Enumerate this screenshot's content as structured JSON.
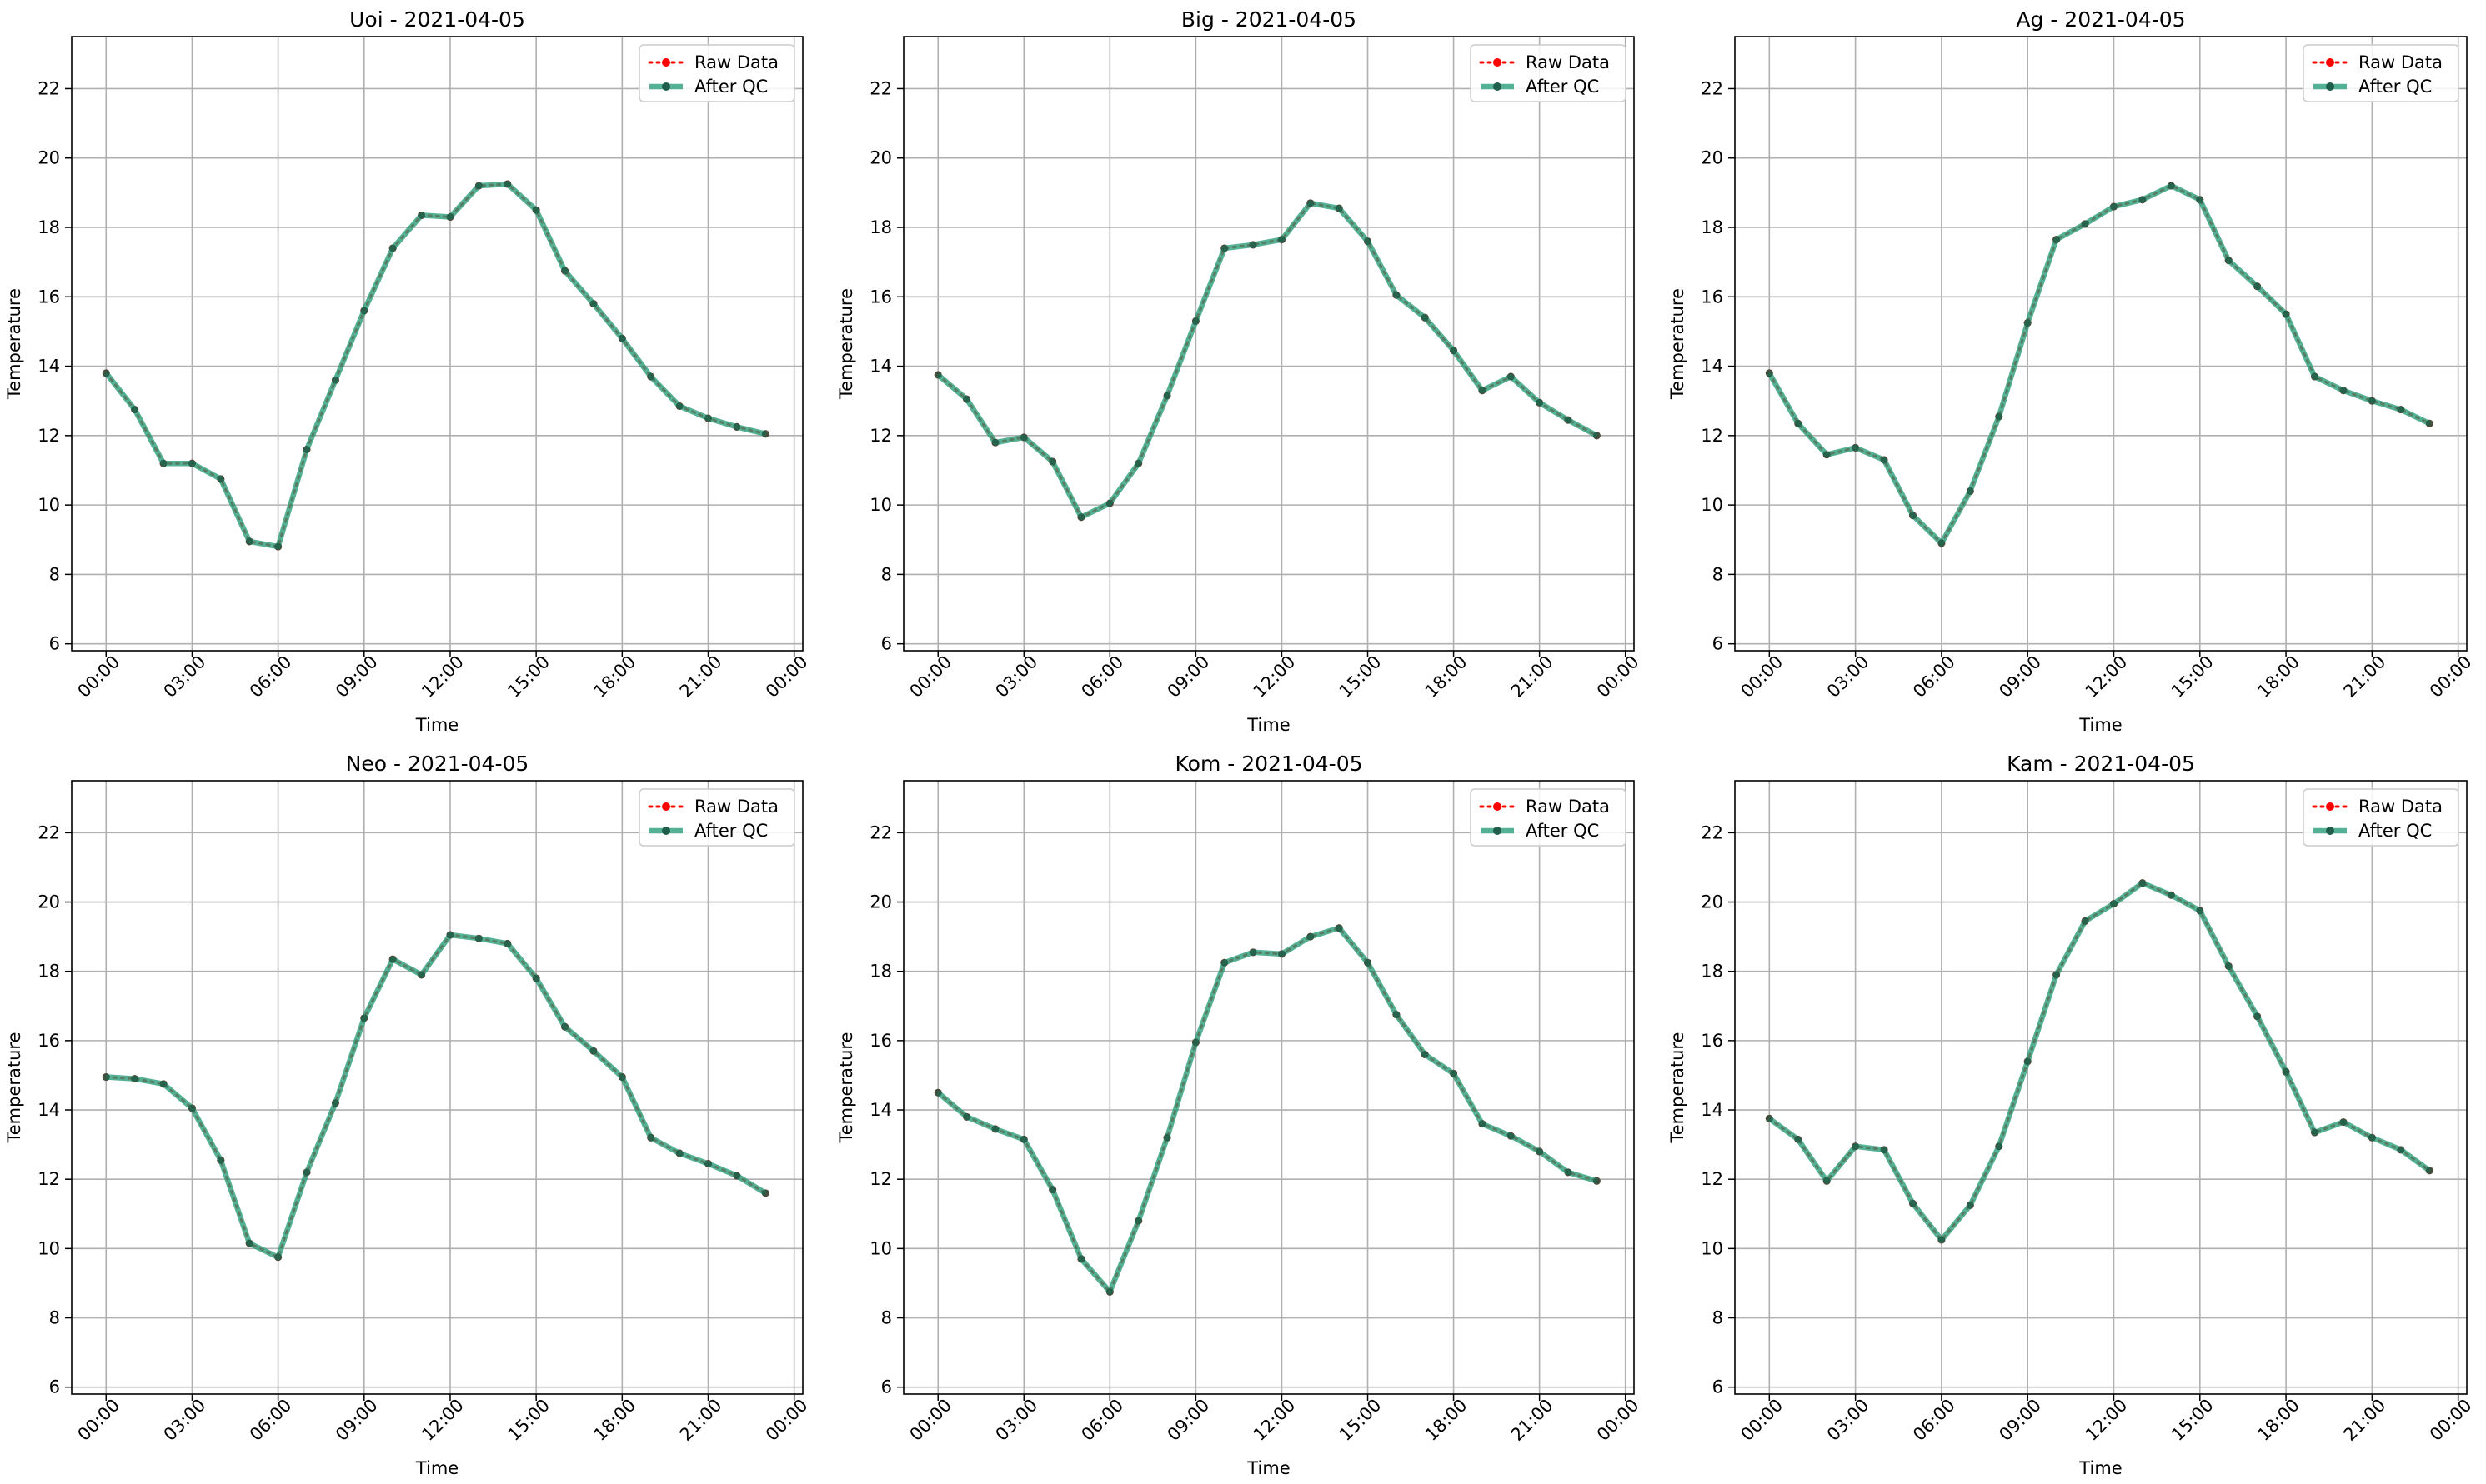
{
  "figure": {
    "colors": {
      "raw": "#ff0000",
      "qc": "#2a9d7a",
      "grid": "#b0b0b0",
      "frame": "#000000"
    },
    "legend_position": "upper right",
    "grid": true
  },
  "chart_data": [
    {
      "type": "line",
      "title": "Uoi - 2021-04-05",
      "xlabel": "Time",
      "ylabel": "Temperature",
      "x_hours": [
        0,
        1,
        2,
        3,
        4,
        5,
        6,
        7,
        8,
        9,
        10,
        11,
        12,
        13,
        14,
        15,
        16,
        17,
        18,
        19,
        20,
        21,
        22,
        23
      ],
      "xticks": [
        "00:00",
        "03:00",
        "06:00",
        "09:00",
        "12:00",
        "15:00",
        "18:00",
        "21:00",
        "00:00"
      ],
      "yticks": [
        "6",
        "8",
        "10",
        "12",
        "14",
        "16",
        "18",
        "20",
        "22"
      ],
      "ylim": [
        5.8,
        23.5
      ],
      "xlim_hours": [
        -1.2,
        24.3
      ],
      "series": [
        {
          "name": "Raw Data",
          "values": [
            13.8,
            12.75,
            11.2,
            11.2,
            10.75,
            8.95,
            8.8,
            11.6,
            13.6,
            15.6,
            17.4,
            18.35,
            18.3,
            19.2,
            19.25,
            18.5,
            16.75,
            15.8,
            14.8,
            13.7,
            12.85,
            12.5,
            12.25,
            12.05
          ]
        },
        {
          "name": "After QC",
          "values": [
            13.8,
            12.75,
            11.2,
            11.2,
            10.75,
            8.95,
            8.8,
            11.6,
            13.6,
            15.6,
            17.4,
            18.35,
            18.3,
            19.2,
            19.25,
            18.5,
            16.75,
            15.8,
            14.8,
            13.7,
            12.85,
            12.5,
            12.25,
            12.05
          ]
        }
      ]
    },
    {
      "type": "line",
      "title": "Big - 2021-04-05",
      "xlabel": "Time",
      "ylabel": "Temperature",
      "x_hours": [
        0,
        1,
        2,
        3,
        4,
        5,
        6,
        7,
        8,
        9,
        10,
        11,
        12,
        13,
        14,
        15,
        16,
        17,
        18,
        19,
        20,
        21,
        22,
        23
      ],
      "xticks": [
        "00:00",
        "03:00",
        "06:00",
        "09:00",
        "12:00",
        "15:00",
        "18:00",
        "21:00",
        "00:00"
      ],
      "yticks": [
        "6",
        "8",
        "10",
        "12",
        "14",
        "16",
        "18",
        "20",
        "22"
      ],
      "ylim": [
        5.8,
        23.5
      ],
      "xlim_hours": [
        -1.2,
        24.3
      ],
      "series": [
        {
          "name": "Raw Data",
          "values": [
            13.75,
            13.05,
            11.8,
            11.95,
            11.25,
            9.65,
            10.05,
            11.2,
            13.15,
            15.3,
            17.4,
            17.5,
            17.65,
            18.7,
            18.55,
            17.6,
            16.05,
            15.4,
            14.45,
            13.3,
            13.7,
            12.95,
            12.45,
            12.0
          ]
        },
        {
          "name": "After QC",
          "values": [
            13.75,
            13.05,
            11.8,
            11.95,
            11.25,
            9.65,
            10.05,
            11.2,
            13.15,
            15.3,
            17.4,
            17.5,
            17.65,
            18.7,
            18.55,
            17.6,
            16.05,
            15.4,
            14.45,
            13.3,
            13.7,
            12.95,
            12.45,
            12.0
          ]
        }
      ]
    },
    {
      "type": "line",
      "title": "Ag - 2021-04-05",
      "xlabel": "Time",
      "ylabel": "Temperature",
      "x_hours": [
        0,
        1,
        2,
        3,
        4,
        5,
        6,
        7,
        8,
        9,
        10,
        11,
        12,
        13,
        14,
        15,
        16,
        17,
        18,
        19,
        20,
        21,
        22,
        23
      ],
      "xticks": [
        "00:00",
        "03:00",
        "06:00",
        "09:00",
        "12:00",
        "15:00",
        "18:00",
        "21:00",
        "00:00"
      ],
      "yticks": [
        "6",
        "8",
        "10",
        "12",
        "14",
        "16",
        "18",
        "20",
        "22"
      ],
      "ylim": [
        5.8,
        23.5
      ],
      "xlim_hours": [
        -1.2,
        24.3
      ],
      "series": [
        {
          "name": "Raw Data",
          "values": [
            13.8,
            12.35,
            11.45,
            11.65,
            11.3,
            9.7,
            8.9,
            10.4,
            12.55,
            15.25,
            17.65,
            18.1,
            18.6,
            18.8,
            19.2,
            18.8,
            17.05,
            16.3,
            15.5,
            13.7,
            13.3,
            13.0,
            12.75,
            12.35
          ]
        },
        {
          "name": "After QC",
          "values": [
            13.8,
            12.35,
            11.45,
            11.65,
            11.3,
            9.7,
            8.9,
            10.4,
            12.55,
            15.25,
            17.65,
            18.1,
            18.6,
            18.8,
            19.2,
            18.8,
            17.05,
            16.3,
            15.5,
            13.7,
            13.3,
            13.0,
            12.75,
            12.35
          ]
        }
      ]
    },
    {
      "type": "line",
      "title": "Neo - 2021-04-05",
      "xlabel": "Time",
      "ylabel": "Temperature",
      "x_hours": [
        0,
        1,
        2,
        3,
        4,
        5,
        6,
        7,
        8,
        9,
        10,
        11,
        12,
        13,
        14,
        15,
        16,
        17,
        18,
        19,
        20,
        21,
        22,
        23
      ],
      "xticks": [
        "00:00",
        "03:00",
        "06:00",
        "09:00",
        "12:00",
        "15:00",
        "18:00",
        "21:00",
        "00:00"
      ],
      "yticks": [
        "6",
        "8",
        "10",
        "12",
        "14",
        "16",
        "18",
        "20",
        "22"
      ],
      "ylim": [
        5.8,
        23.5
      ],
      "xlim_hours": [
        -1.2,
        24.3
      ],
      "series": [
        {
          "name": "Raw Data",
          "values": [
            14.95,
            14.9,
            14.75,
            14.05,
            12.55,
            10.15,
            9.75,
            12.2,
            14.2,
            16.65,
            18.35,
            17.9,
            19.05,
            18.95,
            18.8,
            17.8,
            16.4,
            15.7,
            14.95,
            13.2,
            12.75,
            12.45,
            12.1,
            11.6
          ]
        },
        {
          "name": "After QC",
          "values": [
            14.95,
            14.9,
            14.75,
            14.05,
            12.55,
            10.15,
            9.75,
            12.2,
            14.2,
            16.65,
            18.35,
            17.9,
            19.05,
            18.95,
            18.8,
            17.8,
            16.4,
            15.7,
            14.95,
            13.2,
            12.75,
            12.45,
            12.1,
            11.6
          ]
        }
      ]
    },
    {
      "type": "line",
      "title": "Kom - 2021-04-05",
      "xlabel": "Time",
      "ylabel": "Temperature",
      "x_hours": [
        0,
        1,
        2,
        3,
        4,
        5,
        6,
        7,
        8,
        9,
        10,
        11,
        12,
        13,
        14,
        15,
        16,
        17,
        18,
        19,
        20,
        21,
        22,
        23
      ],
      "xticks": [
        "00:00",
        "03:00",
        "06:00",
        "09:00",
        "12:00",
        "15:00",
        "18:00",
        "21:00",
        "00:00"
      ],
      "yticks": [
        "6",
        "8",
        "10",
        "12",
        "14",
        "16",
        "18",
        "20",
        "22"
      ],
      "ylim": [
        5.8,
        23.5
      ],
      "xlim_hours": [
        -1.2,
        24.3
      ],
      "series": [
        {
          "name": "Raw Data",
          "values": [
            14.5,
            13.8,
            13.45,
            13.15,
            11.7,
            9.7,
            8.75,
            10.8,
            13.2,
            15.95,
            18.25,
            18.55,
            18.5,
            19.0,
            19.25,
            18.25,
            16.75,
            15.6,
            15.05,
            13.6,
            13.25,
            12.8,
            12.2,
            11.95
          ]
        },
        {
          "name": "After QC",
          "values": [
            14.5,
            13.8,
            13.45,
            13.15,
            11.7,
            9.7,
            8.75,
            10.8,
            13.2,
            15.95,
            18.25,
            18.55,
            18.5,
            19.0,
            19.25,
            18.25,
            16.75,
            15.6,
            15.05,
            13.6,
            13.25,
            12.8,
            12.2,
            11.95
          ]
        }
      ]
    },
    {
      "type": "line",
      "title": "Kam - 2021-04-05",
      "xlabel": "Time",
      "ylabel": "Temperature",
      "x_hours": [
        0,
        1,
        2,
        3,
        4,
        5,
        6,
        7,
        8,
        9,
        10,
        11,
        12,
        13,
        14,
        15,
        16,
        17,
        18,
        19,
        20,
        21,
        22,
        23
      ],
      "xticks": [
        "00:00",
        "03:00",
        "06:00",
        "09:00",
        "12:00",
        "15:00",
        "18:00",
        "21:00",
        "00:00"
      ],
      "yticks": [
        "6",
        "8",
        "10",
        "12",
        "14",
        "16",
        "18",
        "20",
        "22"
      ],
      "ylim": [
        5.8,
        23.5
      ],
      "xlim_hours": [
        -1.2,
        24.3
      ],
      "series": [
        {
          "name": "Raw Data",
          "values": [
            13.75,
            13.15,
            11.95,
            12.95,
            12.85,
            11.3,
            10.25,
            11.25,
            12.95,
            15.4,
            17.9,
            19.45,
            19.95,
            20.55,
            20.2,
            19.75,
            18.15,
            16.7,
            15.1,
            13.35,
            13.65,
            13.2,
            12.85,
            12.25
          ]
        },
        {
          "name": "After QC",
          "values": [
            13.75,
            13.15,
            11.95,
            12.95,
            12.85,
            11.3,
            10.25,
            11.25,
            12.95,
            15.4,
            17.9,
            19.45,
            19.95,
            20.55,
            20.2,
            19.75,
            18.15,
            16.7,
            15.1,
            13.35,
            13.65,
            13.2,
            12.85,
            12.25
          ]
        }
      ]
    }
  ]
}
